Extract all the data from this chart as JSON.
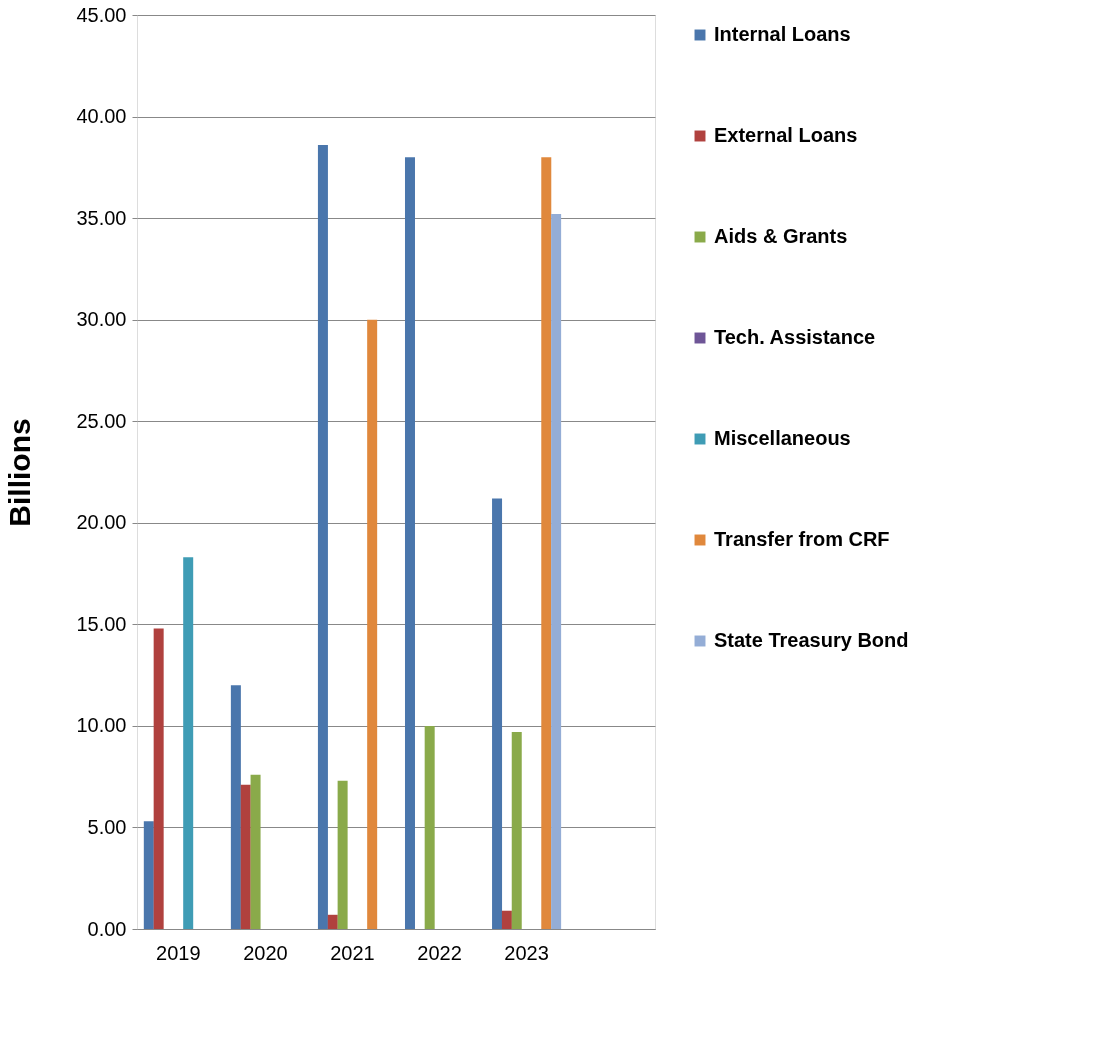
{
  "chart_data": {
    "type": "bar",
    "ylabel": "Billions",
    "categories": [
      "2019",
      "2020",
      "2021",
      "2022",
      "2023",
      null
    ],
    "series": [
      {
        "name": "Internal Loans",
        "color": "#4a76ac",
        "values": [
          5.3,
          12.0,
          38.6,
          38.0,
          21.2,
          null
        ]
      },
      {
        "name": "External Loans",
        "color": "#b0413e",
        "values": [
          14.8,
          7.1,
          0.7,
          null,
          0.9,
          null
        ]
      },
      {
        "name": "Aids & Grants",
        "color": "#8aaa4a",
        "values": [
          null,
          7.6,
          7.3,
          10.0,
          9.7,
          null
        ]
      },
      {
        "name": "Tech. Assistance",
        "color": "#6e5597",
        "values": [
          null,
          null,
          null,
          null,
          null,
          null
        ]
      },
      {
        "name": "Miscellaneous",
        "color": "#3f9cb5",
        "values": [
          18.3,
          null,
          null,
          null,
          null,
          null
        ]
      },
      {
        "name": "Transfer from CRF",
        "color": "#e0883c",
        "values": [
          null,
          null,
          30.0,
          null,
          38.0,
          null
        ]
      },
      {
        "name": "State Treasury Bond",
        "color": "#94add6",
        "values": [
          null,
          null,
          null,
          null,
          35.2,
          null
        ]
      }
    ],
    "ylim": [
      0,
      45
    ],
    "yticks": [
      {
        "value": 0,
        "label": "0.00"
      },
      {
        "value": 5,
        "label": "5.00"
      },
      {
        "value": 10,
        "label": "10.00"
      },
      {
        "value": 15,
        "label": "15.00"
      },
      {
        "value": 20,
        "label": "20.00"
      },
      {
        "value": 25,
        "label": "25.00"
      },
      {
        "value": 30,
        "label": "30.00"
      },
      {
        "value": 35,
        "label": "35.00"
      },
      {
        "value": 40,
        "label": "40.00"
      },
      {
        "value": 45,
        "label": "45.00"
      }
    ],
    "grid": "y",
    "legend": "right"
  }
}
